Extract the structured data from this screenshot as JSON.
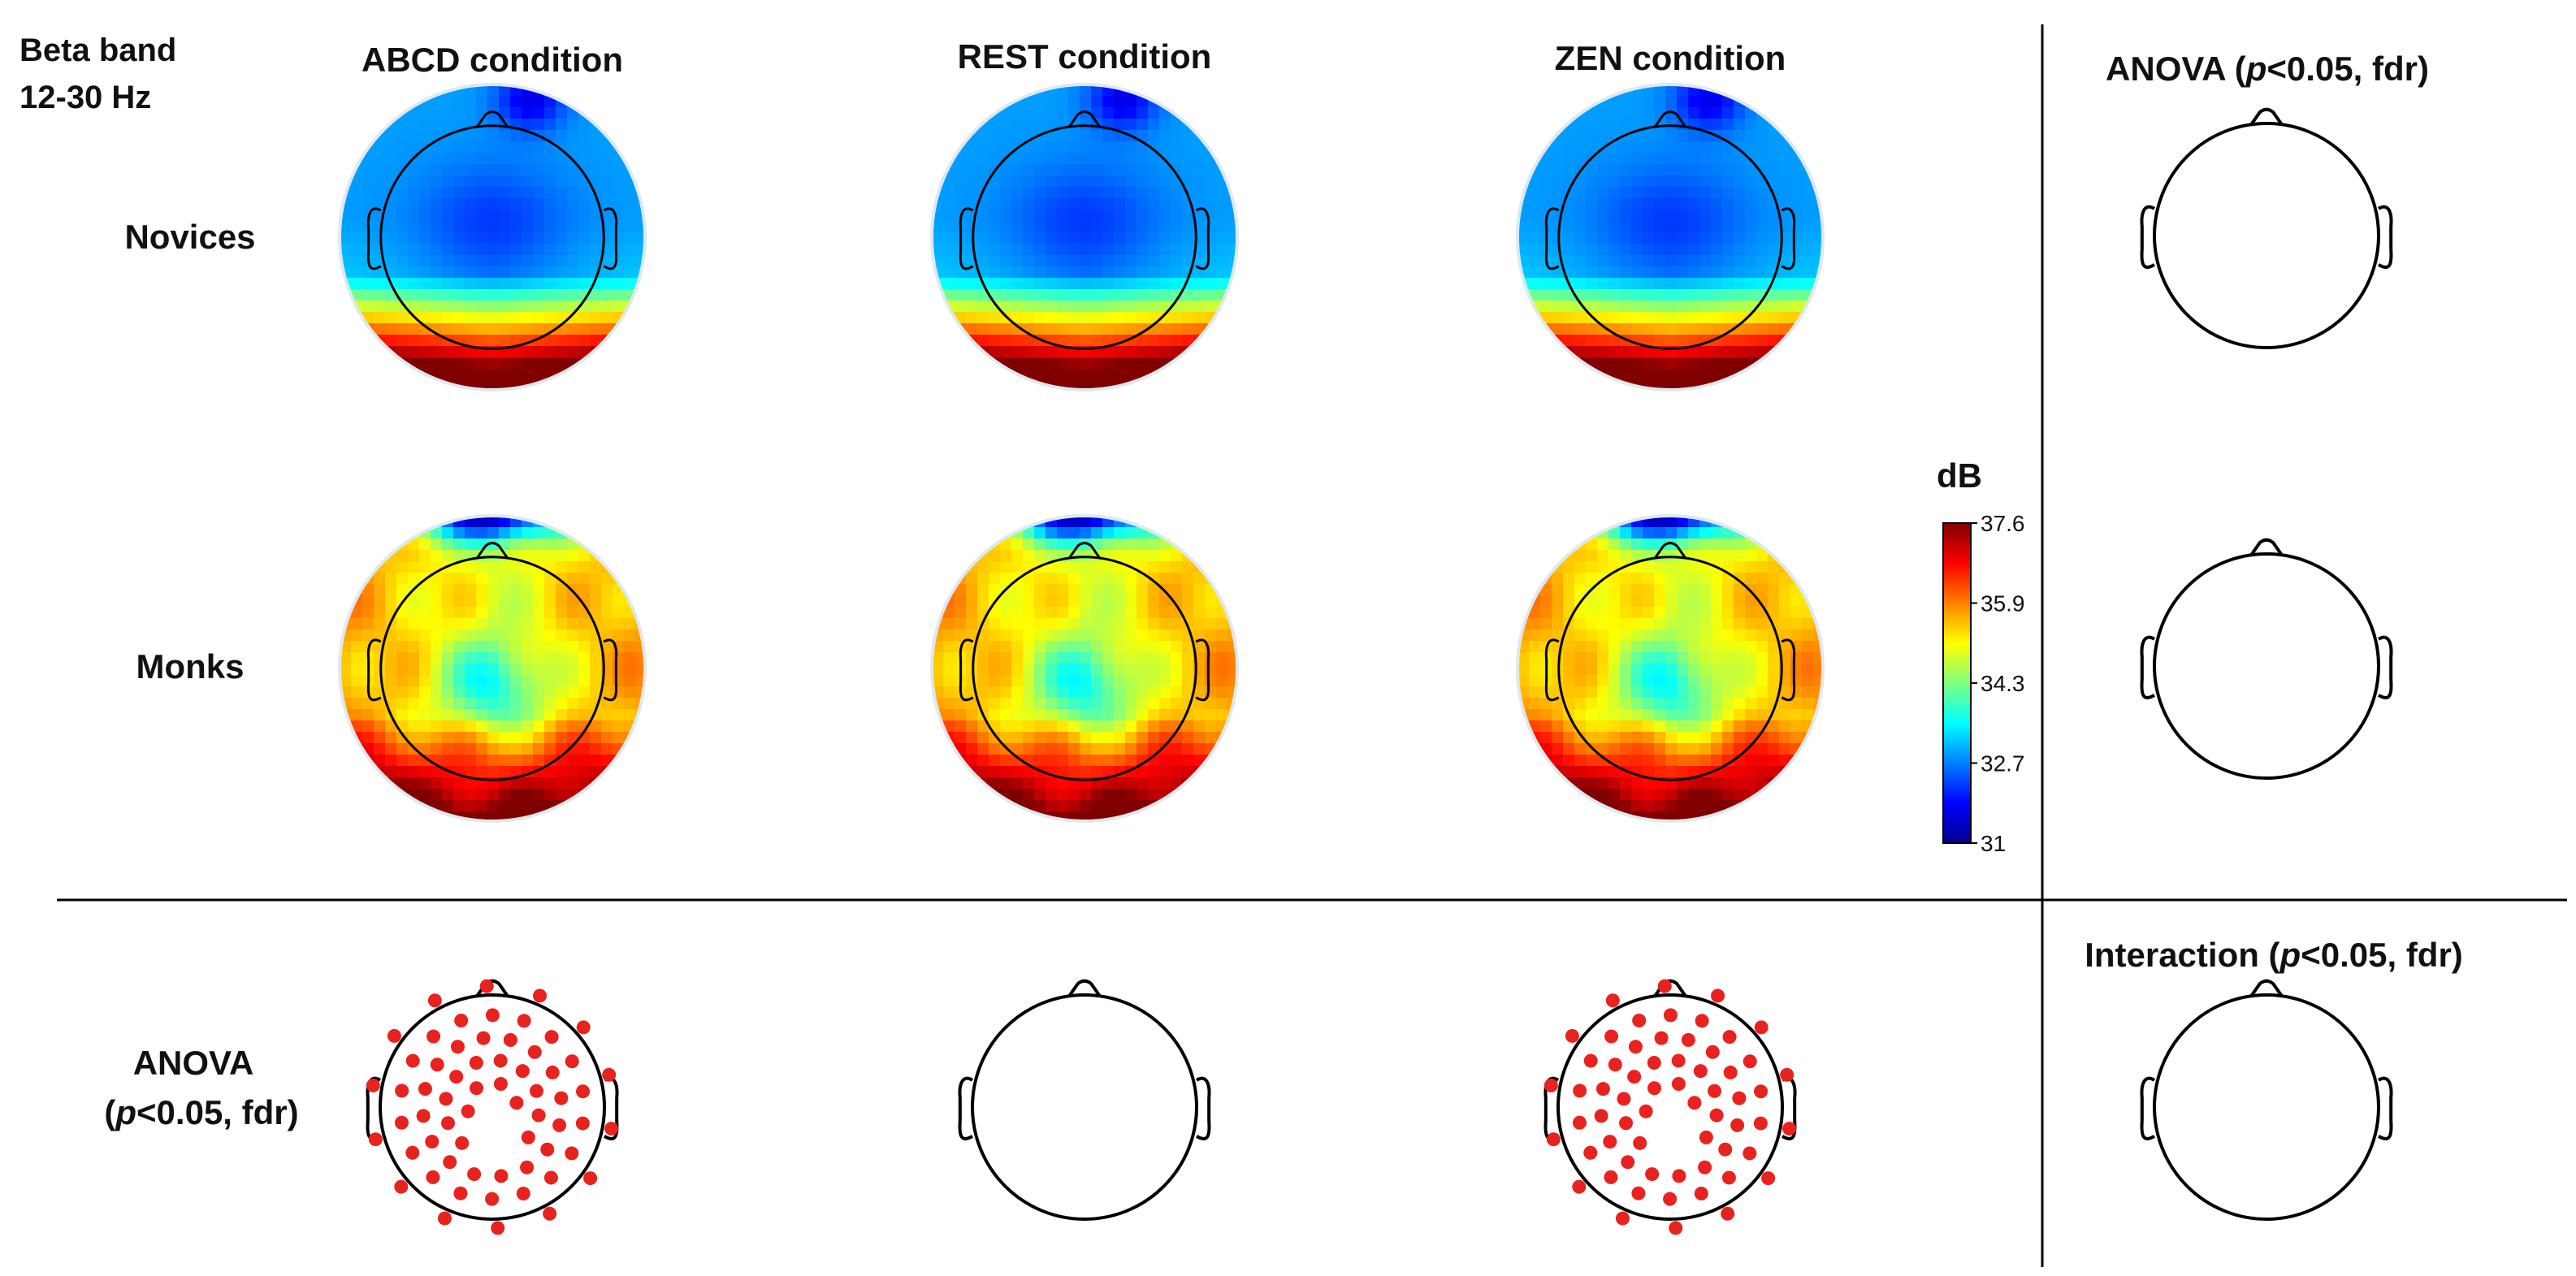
{
  "figure": {
    "band_label_line1": "Beta band",
    "band_label_line2": "12-30 Hz",
    "columns": [
      "ABCD condition",
      "REST condition",
      "ZEN condition"
    ],
    "rows": [
      "Novices",
      "Monks"
    ],
    "anova_right_title": {
      "pre": "ANOVA (",
      "p": "p",
      "post": "<0.05, fdr)"
    },
    "interaction_title": {
      "pre": "Interaction (",
      "p": "p",
      "post": "<0.05, fdr)"
    },
    "anova_row_label": {
      "line1": "ANOVA",
      "pre": "(",
      "p": "p",
      "post": "<0.05, fdr)"
    }
  },
  "colorbar": {
    "unit": "dB",
    "ticks": [
      "37.6",
      "35.9",
      "34.3",
      "32.7",
      "31"
    ],
    "min": 31,
    "max": 37.6,
    "colormap": [
      "#00008f",
      "#0000ff",
      "#0080ff",
      "#00ffff",
      "#80ff80",
      "#ffff00",
      "#ff8000",
      "#ff0000",
      "#800000"
    ]
  },
  "significance": {
    "dot_color": "#e8221e",
    "abcd_significant_electrodes": 62,
    "rest_significant_electrodes": 0,
    "zen_significant_electrodes": 64
  }
}
